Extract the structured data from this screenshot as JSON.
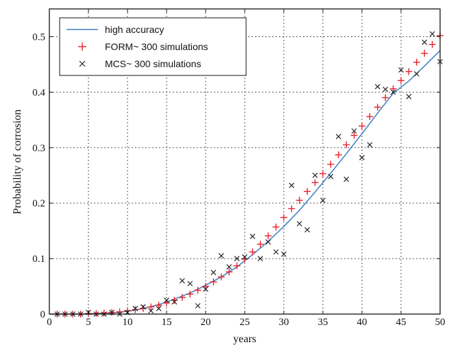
{
  "chart_data": {
    "type": "line",
    "xlabel": "years",
    "ylabel": "Probability of corrosion",
    "xlim": [
      0,
      50
    ],
    "ylim": [
      0,
      0.55
    ],
    "xticks": [
      0,
      5,
      10,
      15,
      20,
      25,
      30,
      35,
      40,
      45,
      50
    ],
    "yticks": [
      0,
      0.1,
      0.2,
      0.3,
      0.4,
      0.5
    ],
    "ytick_labels": [
      "0",
      "0.1",
      "0.2",
      "0.3",
      "0.4",
      "0.5"
    ],
    "grid": true,
    "legend_position": "top-left",
    "series": [
      {
        "name": "high accuracy",
        "marker": "line",
        "color": "#3d7ec4",
        "x": [
          0,
          2,
          4,
          6,
          8,
          10,
          12,
          14,
          16,
          18,
          20,
          22,
          24,
          26,
          28,
          30,
          32,
          34,
          36,
          38,
          40,
          42,
          44,
          46,
          48,
          50
        ],
        "y": [
          0,
          0,
          0,
          0.001,
          0.002,
          0.005,
          0.01,
          0.017,
          0.027,
          0.038,
          0.052,
          0.067,
          0.085,
          0.107,
          0.131,
          0.158,
          0.187,
          0.22,
          0.254,
          0.289,
          0.325,
          0.362,
          0.398,
          0.42,
          0.447,
          0.475
        ]
      },
      {
        "name": "FORM~ 300 simulations",
        "marker": "plus",
        "color": "#e8202a",
        "x": [
          1,
          2,
          3,
          4,
          5,
          6,
          7,
          8,
          9,
          10,
          11,
          12,
          13,
          14,
          15,
          16,
          17,
          18,
          19,
          20,
          21,
          22,
          23,
          24,
          25,
          26,
          27,
          28,
          29,
          30,
          31,
          32,
          33,
          34,
          35,
          36,
          37,
          38,
          39,
          40,
          41,
          42,
          43,
          44,
          45,
          46,
          47,
          48,
          49,
          50
        ],
        "y": [
          0,
          0,
          0,
          0,
          0.001,
          0.001,
          0.002,
          0.003,
          0.004,
          0.006,
          0.008,
          0.01,
          0.013,
          0.016,
          0.02,
          0.025,
          0.03,
          0.036,
          0.043,
          0.05,
          0.058,
          0.067,
          0.076,
          0.087,
          0.099,
          0.112,
          0.126,
          0.141,
          0.157,
          0.174,
          0.19,
          0.205,
          0.221,
          0.237,
          0.253,
          0.27,
          0.287,
          0.305,
          0.322,
          0.339,
          0.356,
          0.373,
          0.39,
          0.406,
          0.421,
          0.437,
          0.454,
          0.47,
          0.486,
          0.502
        ]
      },
      {
        "name": "MCS~ 300 simulations",
        "marker": "x",
        "color": "#222222",
        "x": [
          1,
          2,
          3,
          4,
          5,
          6,
          7,
          8,
          9,
          10,
          11,
          12,
          13,
          14,
          15,
          16,
          17,
          18,
          19,
          20,
          21,
          22,
          23,
          24,
          25,
          26,
          27,
          28,
          29,
          30,
          31,
          32,
          33,
          34,
          35,
          36,
          37,
          38,
          39,
          40,
          41,
          42,
          43,
          44,
          45,
          46,
          47,
          48,
          49,
          50
        ],
        "y": [
          0,
          0,
          0,
          0,
          0.003,
          0,
          0,
          0.003,
          0,
          0.003,
          0.01,
          0.013,
          0.006,
          0.01,
          0.025,
          0.022,
          0.06,
          0.055,
          0.015,
          0.045,
          0.075,
          0.105,
          0.085,
          0.1,
          0.103,
          0.14,
          0.1,
          0.13,
          0.112,
          0.108,
          0.232,
          0.163,
          0.152,
          0.25,
          0.205,
          0.248,
          0.32,
          0.243,
          0.33,
          0.282,
          0.305,
          0.41,
          0.405,
          0.4,
          0.44,
          0.392,
          0.433,
          0.49,
          0.505,
          0.455
        ]
      }
    ]
  }
}
